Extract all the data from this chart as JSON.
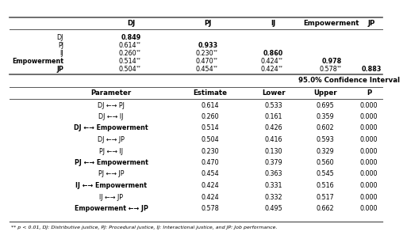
{
  "top_headers": [
    "DJ",
    "PJ",
    "IJ",
    "Empowerment",
    "JP"
  ],
  "correlation_rows": [
    {
      "label": "DJ",
      "values": [
        "0.849",
        "",
        "",
        "",
        ""
      ],
      "diag": 0
    },
    {
      "label": "PJ",
      "values": [
        "0.614",
        "0.933",
        "",
        "",
        ""
      ],
      "sig": [
        0
      ],
      "diag": 1
    },
    {
      "label": "IJ",
      "values": [
        "0.260",
        "0.230",
        "0.860",
        "",
        ""
      ],
      "sig": [
        0,
        1
      ],
      "diag": 2
    },
    {
      "label": "Empowerment",
      "values": [
        "0.514",
        "0.470",
        "0.424",
        "0.978",
        ""
      ],
      "sig": [
        0,
        1,
        2
      ],
      "diag": 3
    },
    {
      "label": "JP",
      "values": [
        "0.504",
        "0.454",
        "0.424",
        "0.578",
        "0.883"
      ],
      "sig": [
        0,
        1,
        2,
        3
      ],
      "diag": 4
    }
  ],
  "ci_header": "95.0% Confidence Interval",
  "param_headers": [
    "Parameter",
    "Estimate",
    "Lower",
    "Upper",
    "P"
  ],
  "param_rows": [
    {
      "param": "DJ ←→ PJ",
      "estimate": "0.614",
      "lower": "0.533",
      "upper": "0.695",
      "p": "0.000",
      "bold": false
    },
    {
      "param": "DJ ←→ IJ",
      "estimate": "0.260",
      "lower": "0.161",
      "upper": "0.359",
      "p": "0.000",
      "bold": false
    },
    {
      "param": "DJ ←→ Empowerment",
      "estimate": "0.514",
      "lower": "0.426",
      "upper": "0.602",
      "p": "0.000",
      "bold": true
    },
    {
      "param": "DJ ←→ JP",
      "estimate": "0.504",
      "lower": "0.416",
      "upper": "0.593",
      "p": "0.000",
      "bold": false
    },
    {
      "param": "PJ ←→ IJ",
      "estimate": "0.230",
      "lower": "0.130",
      "upper": "0.329",
      "p": "0.000",
      "bold": false
    },
    {
      "param": "PJ ←→ Empowerment",
      "estimate": "0.470",
      "lower": "0.379",
      "upper": "0.560",
      "p": "0.000",
      "bold": true
    },
    {
      "param": "PJ ←→ JP",
      "estimate": "0.454",
      "lower": "0.363",
      "upper": "0.545",
      "p": "0.000",
      "bold": false
    },
    {
      "param": "IJ ←→ Empowerment",
      "estimate": "0.424",
      "lower": "0.331",
      "upper": "0.516",
      "p": "0.000",
      "bold": true
    },
    {
      "param": "IJ ←→ JP",
      "estimate": "0.424",
      "lower": "0.332",
      "upper": "0.517",
      "p": "0.000",
      "bold": false
    },
    {
      "param": "Empowerment ←→ JP",
      "estimate": "0.578",
      "lower": "0.495",
      "upper": "0.662",
      "p": "0.000",
      "bold": true
    }
  ],
  "footnote": "** p < 0.01, DJ: Distributive justice, PJ: Procedural justice, IJ: Interactional justice, and JP: Job performance.",
  "bg_color": "#ffffff",
  "text_color": "#000000",
  "line_color": "#555555"
}
